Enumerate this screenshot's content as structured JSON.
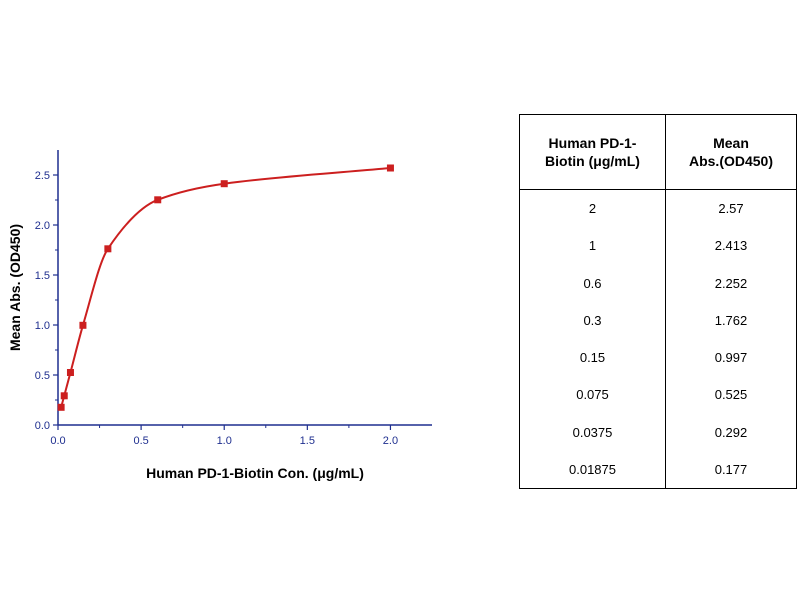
{
  "chart_data": {
    "type": "scatter",
    "title": "",
    "xlabel": "Human PD-1-Biotin Con. (μg/mL)",
    "ylabel": "Mean Abs. (OD450)",
    "xlim": [
      0,
      2.25
    ],
    "ylim": [
      0,
      2.75
    ],
    "x_ticks": [
      "0.0",
      "0.5",
      "1.0",
      "1.5",
      "2.0"
    ],
    "y_ticks": [
      "0.0",
      "0.5",
      "1.0",
      "1.5",
      "2.0",
      "2.5"
    ],
    "grid": false,
    "series": [
      {
        "x": [
          2,
          1,
          0.6,
          0.3,
          0.15,
          0.075,
          0.0375,
          0.01875
        ],
        "y": [
          2.57,
          2.413,
          2.252,
          1.762,
          0.997,
          0.525,
          0.292,
          0.177
        ],
        "marker": "square",
        "fit_curve": true,
        "color": "#cc1f1f"
      }
    ]
  },
  "table": {
    "headers": [
      "Human PD-1-\nBiotin (μg/mL)",
      "Mean\nAbs.(OD450)"
    ],
    "rows": [
      [
        "2",
        "2.57"
      ],
      [
        "1",
        "2.413"
      ],
      [
        "0.6",
        "2.252"
      ],
      [
        "0.3",
        "1.762"
      ],
      [
        "0.15",
        "0.997"
      ],
      [
        "0.075",
        "0.525"
      ],
      [
        "0.0375",
        "0.292"
      ],
      [
        "0.01875",
        "0.177"
      ]
    ]
  },
  "colors": {
    "axis": "#1f2f8f",
    "series": "#cc1f1f"
  }
}
